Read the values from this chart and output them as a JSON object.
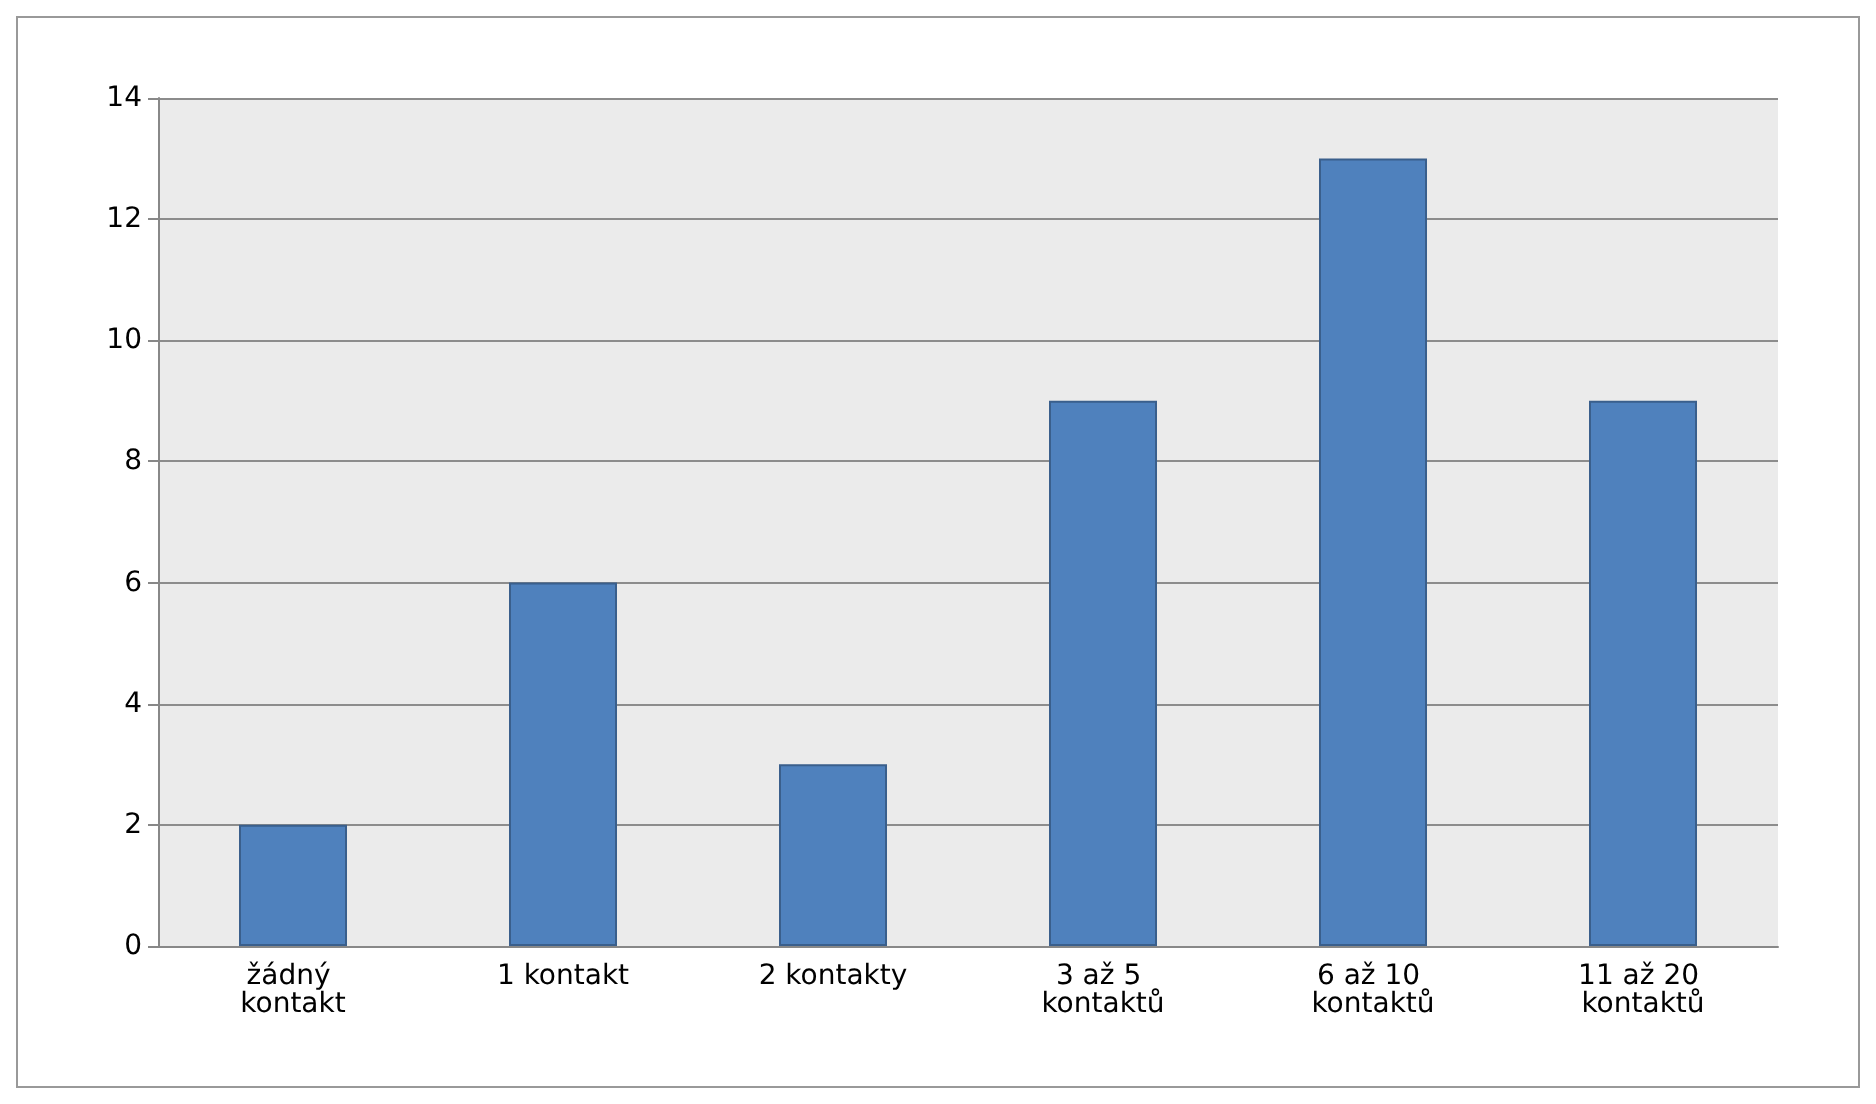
{
  "chart_data": {
    "type": "bar",
    "categories": [
      "žádný kontakt",
      "1 kontakt",
      "2 kontakty",
      "3 až 5 kontaktů",
      "6 až 10 kontaktů",
      "11 až 20 kontaktů"
    ],
    "values": [
      2,
      6,
      3,
      9,
      13,
      9
    ],
    "color": "#4f81bd",
    "ylim": [
      0,
      14
    ],
    "yticks": [
      0,
      2,
      4,
      6,
      8,
      10,
      12,
      14
    ],
    "grid": "y"
  }
}
